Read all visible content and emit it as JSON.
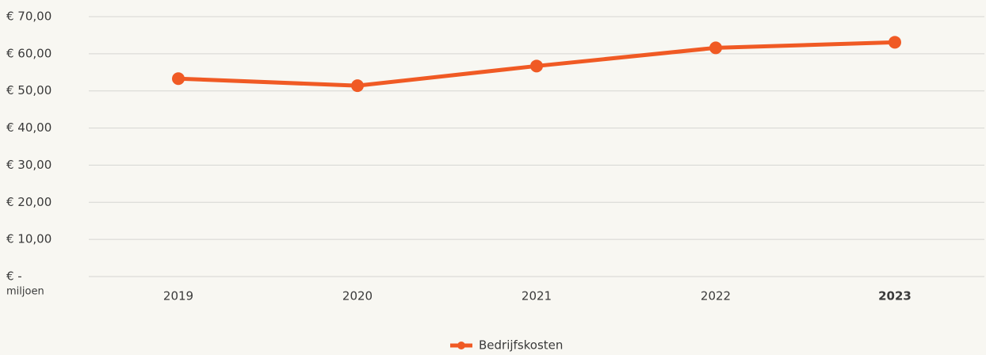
{
  "chart_data": {
    "type": "line",
    "ylabel": "miljoen",
    "categories": [
      "2019",
      "2020",
      "2021",
      "2022",
      "2023"
    ],
    "highlight": "2023",
    "series": [
      {
        "name": "Bedrijfskosten",
        "color": "#f05a24",
        "values": [
          53.3,
          51.4,
          56.7,
          61.6,
          63.1
        ]
      }
    ],
    "ylim": [
      0,
      70
    ],
    "yticks": [
      {
        "value": 0,
        "label": "€ -"
      },
      {
        "value": 10,
        "label": "€ 10,00"
      },
      {
        "value": 20,
        "label": "€ 20,00"
      },
      {
        "value": 30,
        "label": "€ 30,00"
      },
      {
        "value": 40,
        "label": "€ 40,00"
      },
      {
        "value": 50,
        "label": "€ 50,00"
      },
      {
        "value": 60,
        "label": "€ 60,00"
      },
      {
        "value": 70,
        "label": "€ 70,00"
      }
    ],
    "grid": true,
    "legend": "bottom"
  }
}
